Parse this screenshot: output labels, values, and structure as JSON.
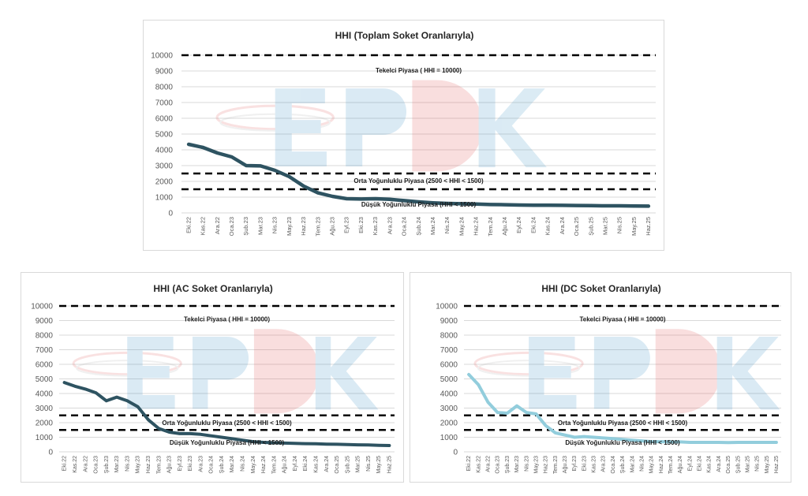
{
  "chart_data": [
    {
      "type": "line",
      "title": "HHI (Toplam Soket Oranlarıyla)",
      "categories": [
        "Eki.22",
        "Kas.22",
        "Ara.22",
        "Oca.23",
        "Şub.23",
        "Mar.23",
        "Nis.23",
        "May.23",
        "Haz.23",
        "Tem.23",
        "Ağu.23",
        "Eyl.23",
        "Eki.23",
        "Kas.23",
        "Ara.23",
        "Oca.24",
        "Şub.24",
        "Mar.24",
        "Nis.24",
        "May.24",
        "Haz.24",
        "Tem.24",
        "Ağu.24",
        "Eyl.24",
        "Eki.24",
        "Kas.24",
        "Ara.24",
        "Oca.25",
        "Şub.25",
        "Mar.25",
        "Nis.25",
        "May.25",
        "Haz.25"
      ],
      "series": [
        {
          "color": "#2e5361",
          "values": [
            4350,
            4150,
            3800,
            3550,
            3000,
            2980,
            2700,
            2300,
            1700,
            1270,
            1050,
            900,
            880,
            900,
            860,
            780,
            700,
            640,
            600,
            580,
            560,
            530,
            520,
            500,
            490,
            490,
            480,
            470,
            460,
            450,
            450,
            440,
            430
          ]
        }
      ],
      "ylim": [
        0,
        10000
      ],
      "yticks": [
        0,
        1000,
        2000,
        3000,
        4000,
        5000,
        6000,
        7000,
        8000,
        9000,
        10000
      ],
      "reference_lines": [
        {
          "value": 10000
        },
        {
          "value": 2500
        },
        {
          "value": 1500
        }
      ],
      "annotations": [
        {
          "text": "Tekelci Piyasa ( HHI = 10000)",
          "value": 9050
        },
        {
          "text": "Orta Yoğunluklu Piyasa (2500 < HHI < 1500)",
          "value": 2050
        },
        {
          "text": "Düşük Yoğunluklu Piyasa (HHI < 1500)",
          "value": 560
        }
      ]
    },
    {
      "type": "line",
      "title": "HHI (AC Soket Oranlarıyla)",
      "categories": [
        "Eki.22",
        "Kas.22",
        "Ara.22",
        "Oca.23",
        "Şub.23",
        "Mar.23",
        "Nis.23",
        "May.23",
        "Haz.23",
        "Tem.23",
        "Ağu.23",
        "Eyl.23",
        "Eki.23",
        "Ara.23",
        "Oca.24",
        "Şub.24",
        "Mar.24",
        "Nis.24",
        "May.24",
        "Haz.24",
        "Tem.24",
        "Ağu.24",
        "Eyl.24",
        "Eki.24",
        "Kas.24",
        "Ara.24",
        "Oca.25",
        "Şub.25",
        "Mar.25",
        "Nis.25",
        "May.25",
        "Haz.25"
      ],
      "series": [
        {
          "color": "#2e5361",
          "values": [
            4750,
            4500,
            4300,
            4050,
            3500,
            3750,
            3500,
            3100,
            2200,
            1600,
            1350,
            1250,
            1250,
            1200,
            1100,
            1000,
            900,
            800,
            700,
            650,
            620,
            600,
            580,
            560,
            550,
            530,
            520,
            500,
            480,
            470,
            450,
            430
          ]
        }
      ],
      "ylim": [
        0,
        10000
      ],
      "yticks": [
        0,
        1000,
        2000,
        3000,
        4000,
        5000,
        6000,
        7000,
        8000,
        9000,
        10000
      ],
      "reference_lines": [
        {
          "value": 10000
        },
        {
          "value": 2500
        },
        {
          "value": 1500
        }
      ],
      "annotations": [
        {
          "text": "Tekelci Piyasa ( HHI = 10000)",
          "value": 9100
        },
        {
          "text": "Orta Yoğunluklu Piyasa (2500 < HHI < 1500)",
          "value": 2000
        },
        {
          "text": "Düşük Yoğunluklu Piyasa (HHI < 1500)",
          "value": 650
        }
      ]
    },
    {
      "type": "line",
      "title": "HHI (DC Soket Oranlarıyla)",
      "categories": [
        "Eki.22",
        "Kas.22",
        "Ara.22",
        "Oca.23",
        "Şub.23",
        "Mar.23",
        "Nis.23",
        "May.23",
        "Haz.23",
        "Tem.23",
        "Ağu.23",
        "Eyl.23",
        "Eki.23",
        "Kas.23",
        "Ara.23",
        "Oca.24",
        "Şub.24",
        "Mar.24",
        "Nis.24",
        "May.24",
        "Haz.24",
        "Tem.24",
        "Ağu.24",
        "Eyl.24",
        "Eki.24",
        "Kas.24",
        "Ara.24",
        "Oca.25",
        "Şub.25",
        "Mar.25",
        "Nis.25",
        "May.25",
        "Haz.25"
      ],
      "series": [
        {
          "color": "#92cddc",
          "values": [
            5300,
            4600,
            3400,
            2700,
            2650,
            3150,
            2700,
            2600,
            1800,
            1300,
            1150,
            1000,
            1050,
            1000,
            950,
            900,
            850,
            800,
            750,
            700,
            700,
            680,
            680,
            650,
            650,
            650,
            650,
            640,
            650,
            650,
            650,
            650,
            650
          ]
        }
      ],
      "ylim": [
        0,
        10000
      ],
      "yticks": [
        0,
        1000,
        2000,
        3000,
        4000,
        5000,
        6000,
        7000,
        8000,
        9000,
        10000
      ],
      "reference_lines": [
        {
          "value": 10000
        },
        {
          "value": 2500
        },
        {
          "value": 1500
        }
      ],
      "annotations": [
        {
          "text": "Tekelci Piyasa ( HHI = 10000)",
          "value": 9100
        },
        {
          "text": "Orta Yoğunluklu Piyasa (2500 < HHI < 1500)",
          "value": 2000
        },
        {
          "text": "Düşük Yoğunluklu Piyasa (HHI < 1500)",
          "value": 650
        }
      ]
    }
  ]
}
